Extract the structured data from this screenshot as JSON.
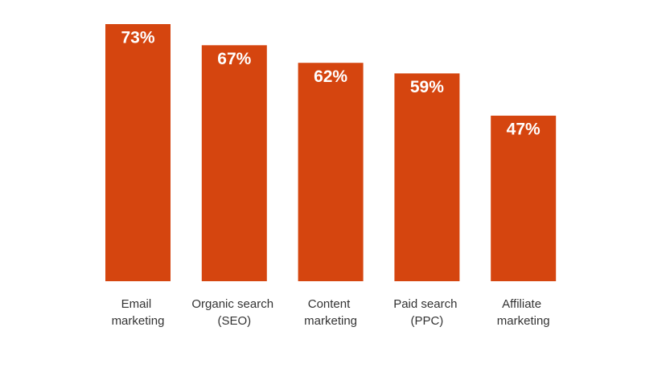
{
  "chart_data": {
    "type": "bar",
    "categories": [
      "Email marketing",
      "Organic search (SEO)",
      "Content marketing",
      "Paid search (PPC)",
      "Affiliate marketing"
    ],
    "values": [
      73,
      67,
      62,
      59,
      47
    ],
    "value_labels": [
      "73%",
      "67%",
      "62%",
      "59%",
      "47%"
    ],
    "color": "#d5450f"
  }
}
